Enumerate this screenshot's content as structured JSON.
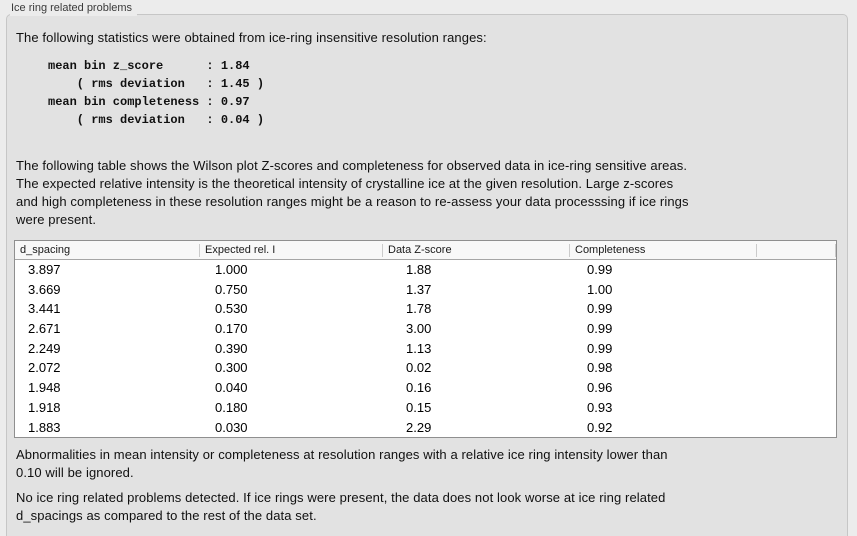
{
  "panel": {
    "title": "Ice ring related problems"
  },
  "intro_text": "The following statistics were obtained from ice-ring insensitive resolution ranges:",
  "stats_block": {
    "text": "mean bin z_score      : 1.84\n    ( rms deviation   : 1.45 )\nmean bin completeness : 0.97\n    ( rms deviation   : 0.04 )",
    "mean_bin_z_score": 1.84,
    "z_score_rms_deviation": 1.45,
    "mean_bin_completeness": 0.97,
    "completeness_rms_deviation": 0.04
  },
  "table_description": "The following table shows the Wilson plot Z-scores and completeness for observed data in ice-ring sensitive areas.\nThe expected relative intensity is the theoretical intensity of crystalline ice at the given resolution. Large z-scores\nand high completeness in these resolution ranges might be a reason to re-assess your data processsing if ice rings\nwere present.",
  "table": {
    "columns": [
      "d_spacing",
      "Expected rel. I",
      "Data Z-score",
      "Completeness",
      ""
    ],
    "rows": [
      [
        "3.897",
        "1.000",
        "1.88",
        "0.99"
      ],
      [
        "3.669",
        "0.750",
        "1.37",
        "1.00"
      ],
      [
        "3.441",
        "0.530",
        "1.78",
        "0.99"
      ],
      [
        "2.671",
        "0.170",
        "3.00",
        "0.99"
      ],
      [
        "2.249",
        "0.390",
        "1.13",
        "0.99"
      ],
      [
        "2.072",
        "0.300",
        "0.02",
        "0.98"
      ],
      [
        "1.948",
        "0.040",
        "0.16",
        "0.96"
      ],
      [
        "1.918",
        "0.180",
        "0.15",
        "0.93"
      ],
      [
        "1.883",
        "0.030",
        "2.29",
        "0.92"
      ]
    ]
  },
  "note_ignore": "Abnormalities in mean intensity or completeness at resolution ranges with a relative ice ring intensity lower than\n0.10 will be ignored.",
  "conclusion": "No ice ring related problems detected. If ice rings were present, the data does not look worse at ice ring related\nd_spacings as compared to the rest of the data set.",
  "colors": {
    "background": "#ececec",
    "panel_background": "#e2e2e2",
    "panel_border": "#c6c6c6",
    "table_border": "#8f8f8f",
    "table_header_background": "#f8f8f8",
    "text": "#101010"
  }
}
